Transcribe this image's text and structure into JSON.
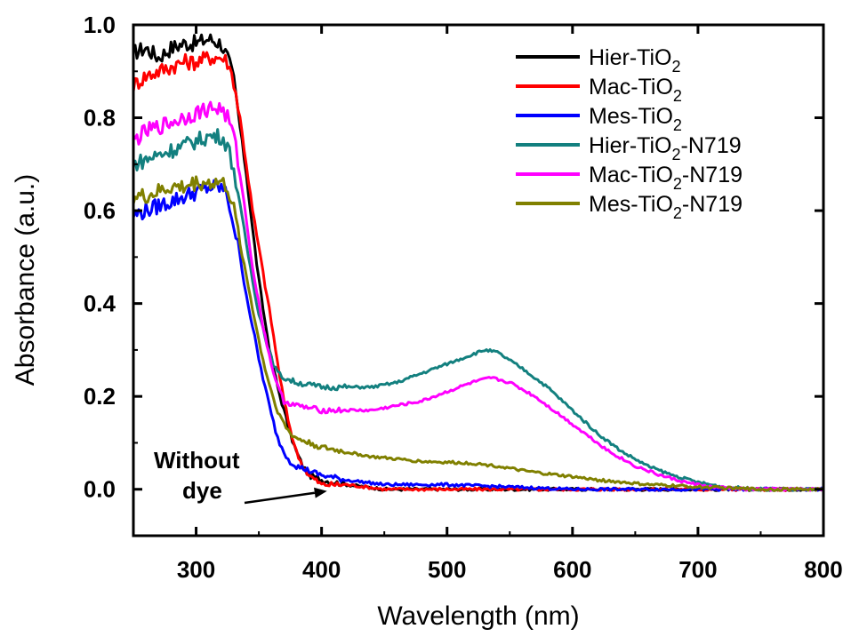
{
  "chart_data": {
    "type": "line",
    "title": "",
    "xlabel": "Wavelength (nm)",
    "ylabel": "Absorbance (a.u.)",
    "xlim": [
      250,
      800
    ],
    "ylim": [
      -0.1,
      1.0
    ],
    "x_ticks": [
      "300",
      "400",
      "500",
      "600",
      "700",
      "800"
    ],
    "x_tick_values": [
      300,
      400,
      500,
      600,
      700,
      800
    ],
    "y_ticks": [
      "0.0",
      "0.2",
      "0.4",
      "0.6",
      "0.8",
      "1.0"
    ],
    "y_tick_values": [
      0.0,
      0.2,
      0.4,
      0.6,
      0.8,
      1.0
    ],
    "grid": false,
    "legend_position": "top-right",
    "annotation": {
      "line1": "Without",
      "line2": "dye",
      "points_to_x": 410,
      "points_to_y": 0.0
    },
    "series": [
      {
        "name": "Hier-TiO2",
        "label_main": "Hier-TiO",
        "label_sub": "2",
        "label_suffix": "",
        "color": "#000000",
        "points": [
          [
            250,
            0.94
          ],
          [
            260,
            0.95
          ],
          [
            270,
            0.93
          ],
          [
            280,
            0.95
          ],
          [
            290,
            0.96
          ],
          [
            300,
            0.96
          ],
          [
            310,
            0.97
          ],
          [
            320,
            0.96
          ],
          [
            325,
            0.93
          ],
          [
            330,
            0.88
          ],
          [
            335,
            0.78
          ],
          [
            340,
            0.68
          ],
          [
            345,
            0.56
          ],
          [
            350,
            0.45
          ],
          [
            355,
            0.36
          ],
          [
            360,
            0.28
          ],
          [
            365,
            0.22
          ],
          [
            370,
            0.17
          ],
          [
            375,
            0.12
          ],
          [
            380,
            0.08
          ],
          [
            385,
            0.05
          ],
          [
            390,
            0.03
          ],
          [
            400,
            0.02
          ],
          [
            420,
            0.01
          ],
          [
            450,
            0.0
          ],
          [
            500,
            0.0
          ],
          [
            600,
            0.0
          ],
          [
            700,
            0.0
          ],
          [
            750,
            0.0
          ],
          [
            800,
            0.0
          ]
        ]
      },
      {
        "name": "Mac-TiO2",
        "label_main": "Mac-TiO",
        "label_sub": "2",
        "label_suffix": "",
        "color": "#ff0000",
        "points": [
          [
            250,
            0.87
          ],
          [
            260,
            0.89
          ],
          [
            270,
            0.9
          ],
          [
            280,
            0.91
          ],
          [
            290,
            0.92
          ],
          [
            300,
            0.92
          ],
          [
            310,
            0.93
          ],
          [
            320,
            0.93
          ],
          [
            325,
            0.92
          ],
          [
            330,
            0.88
          ],
          [
            335,
            0.8
          ],
          [
            340,
            0.7
          ],
          [
            345,
            0.6
          ],
          [
            350,
            0.52
          ],
          [
            355,
            0.44
          ],
          [
            360,
            0.36
          ],
          [
            365,
            0.27
          ],
          [
            370,
            0.19
          ],
          [
            375,
            0.13
          ],
          [
            380,
            0.08
          ],
          [
            385,
            0.05
          ],
          [
            390,
            0.03
          ],
          [
            400,
            0.01
          ],
          [
            420,
            0.01
          ],
          [
            450,
            0.0
          ],
          [
            500,
            0.0
          ],
          [
            600,
            0.0
          ],
          [
            700,
            0.0
          ],
          [
            750,
            0.0
          ],
          [
            800,
            0.0
          ]
        ]
      },
      {
        "name": "Mes-TiO2",
        "label_main": "Mes-TiO",
        "label_sub": "2",
        "label_suffix": "",
        "color": "#0000ff",
        "points": [
          [
            250,
            0.59
          ],
          [
            260,
            0.6
          ],
          [
            270,
            0.61
          ],
          [
            280,
            0.62
          ],
          [
            290,
            0.63
          ],
          [
            300,
            0.64
          ],
          [
            310,
            0.65
          ],
          [
            320,
            0.65
          ],
          [
            325,
            0.63
          ],
          [
            330,
            0.57
          ],
          [
            335,
            0.5
          ],
          [
            340,
            0.42
          ],
          [
            345,
            0.35
          ],
          [
            350,
            0.28
          ],
          [
            355,
            0.22
          ],
          [
            360,
            0.16
          ],
          [
            365,
            0.11
          ],
          [
            370,
            0.08
          ],
          [
            375,
            0.06
          ],
          [
            380,
            0.05
          ],
          [
            390,
            0.04
          ],
          [
            400,
            0.03
          ],
          [
            420,
            0.02
          ],
          [
            450,
            0.01
          ],
          [
            500,
            0.01
          ],
          [
            600,
            0.0
          ],
          [
            700,
            0.0
          ],
          [
            750,
            0.0
          ],
          [
            800,
            0.0
          ]
        ]
      },
      {
        "name": "Hier-TiO2-N719",
        "label_main": "Hier-TiO",
        "label_sub": "2",
        "label_suffix": "-N719",
        "color": "#13807f",
        "points": [
          [
            250,
            0.7
          ],
          [
            260,
            0.71
          ],
          [
            270,
            0.72
          ],
          [
            280,
            0.73
          ],
          [
            290,
            0.74
          ],
          [
            300,
            0.75
          ],
          [
            310,
            0.76
          ],
          [
            320,
            0.76
          ],
          [
            325,
            0.74
          ],
          [
            330,
            0.69
          ],
          [
            335,
            0.61
          ],
          [
            340,
            0.53
          ],
          [
            345,
            0.45
          ],
          [
            350,
            0.38
          ],
          [
            355,
            0.33
          ],
          [
            360,
            0.28
          ],
          [
            365,
            0.25
          ],
          [
            370,
            0.24
          ],
          [
            380,
            0.23
          ],
          [
            400,
            0.22
          ],
          [
            420,
            0.22
          ],
          [
            440,
            0.22
          ],
          [
            460,
            0.23
          ],
          [
            480,
            0.25
          ],
          [
            500,
            0.27
          ],
          [
            520,
            0.29
          ],
          [
            530,
            0.3
          ],
          [
            540,
            0.295
          ],
          [
            560,
            0.26
          ],
          [
            580,
            0.22
          ],
          [
            600,
            0.17
          ],
          [
            620,
            0.12
          ],
          [
            640,
            0.08
          ],
          [
            660,
            0.05
          ],
          [
            680,
            0.03
          ],
          [
            700,
            0.015
          ],
          [
            720,
            0.005
          ],
          [
            750,
            0.0
          ],
          [
            800,
            0.0
          ]
        ]
      },
      {
        "name": "Mac-TiO2-N719",
        "label_main": "Mac-TiO",
        "label_sub": "2",
        "label_suffix": "-N719",
        "color": "#ff00ff",
        "points": [
          [
            250,
            0.75
          ],
          [
            260,
            0.77
          ],
          [
            270,
            0.78
          ],
          [
            280,
            0.79
          ],
          [
            290,
            0.8
          ],
          [
            300,
            0.81
          ],
          [
            310,
            0.82
          ],
          [
            320,
            0.82
          ],
          [
            325,
            0.8
          ],
          [
            330,
            0.76
          ],
          [
            335,
            0.68
          ],
          [
            340,
            0.58
          ],
          [
            345,
            0.48
          ],
          [
            350,
            0.4
          ],
          [
            355,
            0.33
          ],
          [
            360,
            0.27
          ],
          [
            365,
            0.22
          ],
          [
            370,
            0.19
          ],
          [
            380,
            0.18
          ],
          [
            400,
            0.17
          ],
          [
            420,
            0.17
          ],
          [
            440,
            0.17
          ],
          [
            460,
            0.18
          ],
          [
            480,
            0.19
          ],
          [
            500,
            0.21
          ],
          [
            520,
            0.23
          ],
          [
            535,
            0.24
          ],
          [
            550,
            0.23
          ],
          [
            570,
            0.2
          ],
          [
            590,
            0.16
          ],
          [
            610,
            0.12
          ],
          [
            630,
            0.08
          ],
          [
            650,
            0.05
          ],
          [
            670,
            0.03
          ],
          [
            690,
            0.015
          ],
          [
            710,
            0.005
          ],
          [
            740,
            0.0
          ],
          [
            800,
            0.0
          ]
        ]
      },
      {
        "name": "Mes-TiO2-N719",
        "label_main": "Mes-TiO",
        "label_sub": "2",
        "label_suffix": "-N719",
        "color": "#808000",
        "points": [
          [
            250,
            0.63
          ],
          [
            260,
            0.63
          ],
          [
            270,
            0.64
          ],
          [
            280,
            0.65
          ],
          [
            290,
            0.65
          ],
          [
            300,
            0.66
          ],
          [
            310,
            0.66
          ],
          [
            320,
            0.66
          ],
          [
            325,
            0.65
          ],
          [
            330,
            0.6
          ],
          [
            335,
            0.53
          ],
          [
            340,
            0.46
          ],
          [
            345,
            0.39
          ],
          [
            350,
            0.32
          ],
          [
            355,
            0.26
          ],
          [
            360,
            0.21
          ],
          [
            365,
            0.17
          ],
          [
            370,
            0.14
          ],
          [
            375,
            0.12
          ],
          [
            380,
            0.11
          ],
          [
            390,
            0.1
          ],
          [
            400,
            0.09
          ],
          [
            420,
            0.08
          ],
          [
            440,
            0.07
          ],
          [
            460,
            0.065
          ],
          [
            480,
            0.06
          ],
          [
            500,
            0.058
          ],
          [
            520,
            0.056
          ],
          [
            540,
            0.05
          ],
          [
            560,
            0.04
          ],
          [
            580,
            0.033
          ],
          [
            600,
            0.027
          ],
          [
            620,
            0.02
          ],
          [
            640,
            0.015
          ],
          [
            660,
            0.01
          ],
          [
            680,
            0.008
          ],
          [
            700,
            0.005
          ],
          [
            750,
            0.0
          ],
          [
            800,
            0.0
          ]
        ]
      }
    ]
  }
}
